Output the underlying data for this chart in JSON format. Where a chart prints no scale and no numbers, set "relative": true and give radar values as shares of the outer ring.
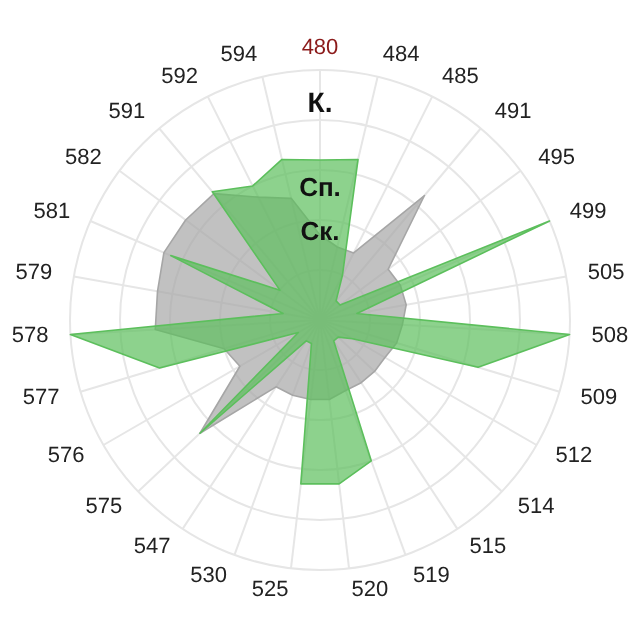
{
  "chart_data": {
    "type": "radar",
    "relative": true,
    "categories": [
      "480",
      "484",
      "485",
      "491",
      "495",
      "499",
      "505",
      "508",
      "509",
      "512",
      "514",
      "515",
      "519",
      "520",
      "525",
      "530",
      "547",
      "575",
      "576",
      "577",
      "578",
      "579",
      "581",
      "582",
      "591",
      "592",
      "594"
    ],
    "series": [
      {
        "name": "Ск.",
        "color": "#a6a6a6",
        "values": [
          0.34,
          0.3,
          0.3,
          0.65,
          0.34,
          0.35,
          0.35,
          0.33,
          0.32,
          0.3,
          0.3,
          0.3,
          0.3,
          0.32,
          0.32,
          0.32,
          0.32,
          0.66,
          0.37,
          0.4,
          0.66,
          0.66,
          0.68,
          0.67,
          0.66,
          0.55,
          0.5
        ]
      },
      {
        "name": "Сп.",
        "color": "#5cbf5c",
        "values": [
          0.64,
          0.66,
          0.2,
          0.1,
          0.1,
          1.0,
          0.15,
          1.0,
          0.66,
          0.15,
          0.1,
          0.1,
          0.6,
          0.66,
          0.66,
          0.1,
          0.1,
          0.66,
          0.1,
          0.67,
          1.0,
          0.15,
          0.65,
          0.2,
          0.67,
          0.6,
          0.66
        ]
      }
    ],
    "annotations": [
      "К."
    ],
    "grid": true,
    "legend": false
  }
}
